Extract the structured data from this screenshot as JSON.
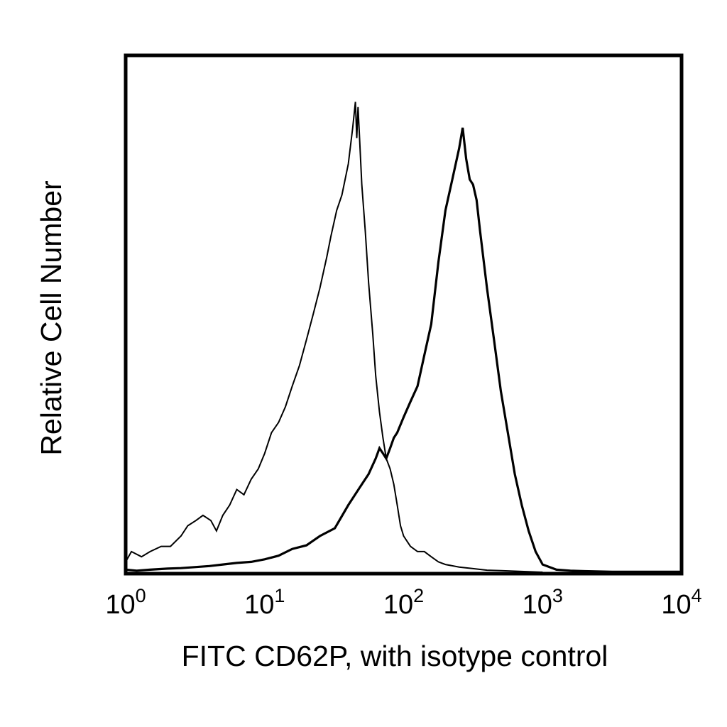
{
  "chart_data": {
    "type": "line",
    "title": "",
    "xlabel": "FITC CD62P, with isotype control",
    "ylabel": "Relative Cell Number",
    "x_scale": "log",
    "xlim": [
      1,
      10000
    ],
    "ylim": [
      0,
      100
    ],
    "grid": false,
    "legend": "none",
    "x_ticks": [
      {
        "base": "10",
        "exp": "0",
        "value": 1
      },
      {
        "base": "10",
        "exp": "1",
        "value": 10
      },
      {
        "base": "10",
        "exp": "2",
        "value": 100
      },
      {
        "base": "10",
        "exp": "3",
        "value": 1000
      },
      {
        "base": "10",
        "exp": "4",
        "value": 10000
      }
    ],
    "series": [
      {
        "style": "thin",
        "color": "#000000",
        "x": [
          1,
          1.1,
          1.3,
          1.5,
          1.8,
          2.1,
          2.5,
          2.8,
          3.2,
          3.6,
          4.1,
          4.5,
          5.0,
          5.6,
          6.3,
          7.1,
          8.0,
          9.0,
          10,
          11.2,
          12.6,
          14.1,
          15.8,
          17.8,
          20,
          22.4,
          25,
          28,
          30,
          33,
          36,
          40,
          43,
          45,
          46,
          47,
          48,
          50,
          53,
          56,
          60,
          63,
          67,
          71,
          75,
          80,
          85,
          90,
          95,
          100,
          112,
          126,
          141,
          158,
          178,
          200,
          251,
          316,
          398,
          501,
          631,
          794,
          1000
        ],
        "y": [
          2,
          4,
          3,
          4,
          5,
          5,
          7,
          9,
          10,
          11,
          10,
          8,
          11,
          13,
          16,
          15,
          18,
          20,
          23,
          27,
          29,
          32,
          36,
          40,
          45,
          50,
          55,
          61,
          65,
          70,
          73,
          79,
          86,
          91,
          84,
          90,
          85,
          75,
          66,
          56,
          46,
          38,
          31,
          26,
          22,
          20,
          17,
          13,
          9,
          7,
          5,
          4,
          4,
          3,
          2,
          1.5,
          1,
          0.7,
          0.4,
          0.3,
          0.2,
          0.1,
          0
        ]
      },
      {
        "style": "thick",
        "color": "#000000",
        "x": [
          1,
          1.2,
          1.5,
          2,
          2.5,
          3.2,
          4,
          5,
          6.3,
          8,
          10,
          12.6,
          15.8,
          20,
          25,
          32,
          40,
          50,
          56,
          63,
          67,
          71,
          75,
          80,
          85,
          90,
          100,
          112,
          126,
          141,
          158,
          178,
          200,
          224,
          251,
          266,
          282,
          299,
          316,
          335,
          355,
          398,
          447,
          501,
          562,
          631,
          708,
          794,
          891,
          1000,
          1259,
          1585,
          2000,
          3162,
          5012,
          10000
        ],
        "y": [
          0.5,
          0.3,
          0.5,
          0.7,
          0.8,
          1,
          1.2,
          1.5,
          1.8,
          2,
          2.5,
          3.2,
          4.5,
          5.2,
          7,
          8.5,
          13,
          17,
          19,
          22,
          24,
          23,
          22,
          24,
          26,
          27,
          30,
          33,
          36,
          42,
          48,
          60,
          70,
          76,
          82,
          86,
          80,
          76,
          75,
          72,
          66,
          55,
          45,
          35,
          27,
          19,
          13,
          8,
          4,
          1.5,
          0.5,
          0.3,
          0.2,
          0.1,
          0.1,
          0.1
        ]
      }
    ]
  }
}
